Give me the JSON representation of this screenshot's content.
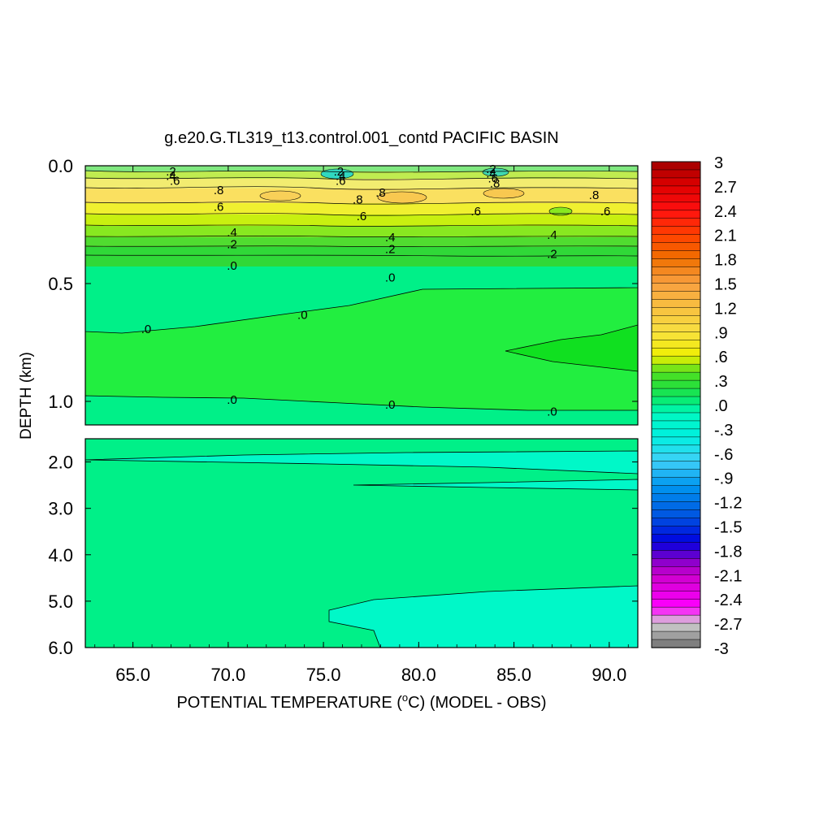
{
  "chart_data": {
    "type": "heatmap",
    "title": "g.e20.G.TL319_t13.control.001_contd PACIFIC BASIN",
    "xlabel_main": "POTENTIAL TEMPERATURE (",
    "xlabel_sup": "o",
    "xlabel_tail": "C) (MODEL - OBS)",
    "ylabel": "DEPTH (km)",
    "x_ticks": [
      "65.0",
      "70.0",
      "75.0",
      "80.0",
      "85.0",
      "90.0"
    ],
    "x_tick_values": [
      65,
      70,
      75,
      80,
      85,
      90
    ],
    "xlim": [
      62.5,
      91.5
    ],
    "upper_panel": {
      "ylim": [
        0,
        1.1
      ],
      "y_ticks": [
        "0.0",
        "0.5",
        "1.0"
      ],
      "y_tick_values": [
        0,
        0.5,
        1.0
      ]
    },
    "lower_panel": {
      "ylim": [
        1.5,
        6.0
      ],
      "y_ticks": [
        "2.0",
        "3.0",
        "4.0",
        "5.0",
        "6.0"
      ],
      "y_tick_values": [
        2,
        3,
        4,
        5,
        6
      ]
    },
    "colorbar": {
      "range": [
        -3,
        3
      ],
      "step": 0.1,
      "labels": [
        "3",
        "2.7",
        "2.4",
        "2.1",
        "1.8",
        "1.5",
        "1.2",
        ".9",
        ".6",
        ".3",
        ".0",
        "-.3",
        "-.6",
        "-.9",
        "-1.2",
        "-1.5",
        "-1.8",
        "-2.1",
        "-2.4",
        "-2.7",
        "-3"
      ]
    },
    "contour_labels": [
      {
        "text": ".2",
        "x": 67.0,
        "depth": 0.02
      },
      {
        "text": ".4",
        "x": 67.0,
        "depth": 0.04
      },
      {
        "text": ".6",
        "x": 67.2,
        "depth": 0.06
      },
      {
        "text": ".8",
        "x": 69.5,
        "depth": 0.1
      },
      {
        "text": ".6",
        "x": 69.5,
        "depth": 0.17
      },
      {
        "text": ".4",
        "x": 70.2,
        "depth": 0.28
      },
      {
        "text": ".2",
        "x": 70.2,
        "depth": 0.33
      },
      {
        "text": ".0",
        "x": 70.2,
        "depth": 0.42
      },
      {
        "text": ".0",
        "x": 65.7,
        "depth": 0.69
      },
      {
        "text": ".0",
        "x": 73.9,
        "depth": 0.63
      },
      {
        "text": ".0",
        "x": 70.2,
        "depth": 0.99
      },
      {
        "text": ".2",
        "x": 75.8,
        "depth": 0.02
      },
      {
        "text": ".4",
        "x": 75.9,
        "depth": 0.04
      },
      {
        "text": ".6",
        "x": 75.9,
        "depth": 0.06
      },
      {
        "text": ".8",
        "x": 76.8,
        "depth": 0.14
      },
      {
        "text": ".8",
        "x": 78.0,
        "depth": 0.11
      },
      {
        "text": ".6",
        "x": 77.0,
        "depth": 0.21
      },
      {
        "text": ".4",
        "x": 78.5,
        "depth": 0.3
      },
      {
        "text": ".2",
        "x": 78.5,
        "depth": 0.35
      },
      {
        "text": ".0",
        "x": 78.5,
        "depth": 0.47
      },
      {
        "text": ".0",
        "x": 78.5,
        "depth": 1.01
      },
      {
        "text": ".2",
        "x": 83.8,
        "depth": 0.01
      },
      {
        "text": ".4",
        "x": 83.8,
        "depth": 0.03
      },
      {
        "text": ".6",
        "x": 83.9,
        "depth": 0.05
      },
      {
        "text": ".8",
        "x": 84.0,
        "depth": 0.07
      },
      {
        "text": ".6",
        "x": 83.0,
        "depth": 0.19
      },
      {
        "text": ".8",
        "x": 89.2,
        "depth": 0.12
      },
      {
        "text": ".6",
        "x": 89.8,
        "depth": 0.19
      },
      {
        "text": ".4",
        "x": 87.0,
        "depth": 0.29
      },
      {
        "text": ".2",
        "x": 87.0,
        "depth": 0.37
      },
      {
        "text": ".0",
        "x": 87.0,
        "depth": 1.04
      }
    ]
  }
}
